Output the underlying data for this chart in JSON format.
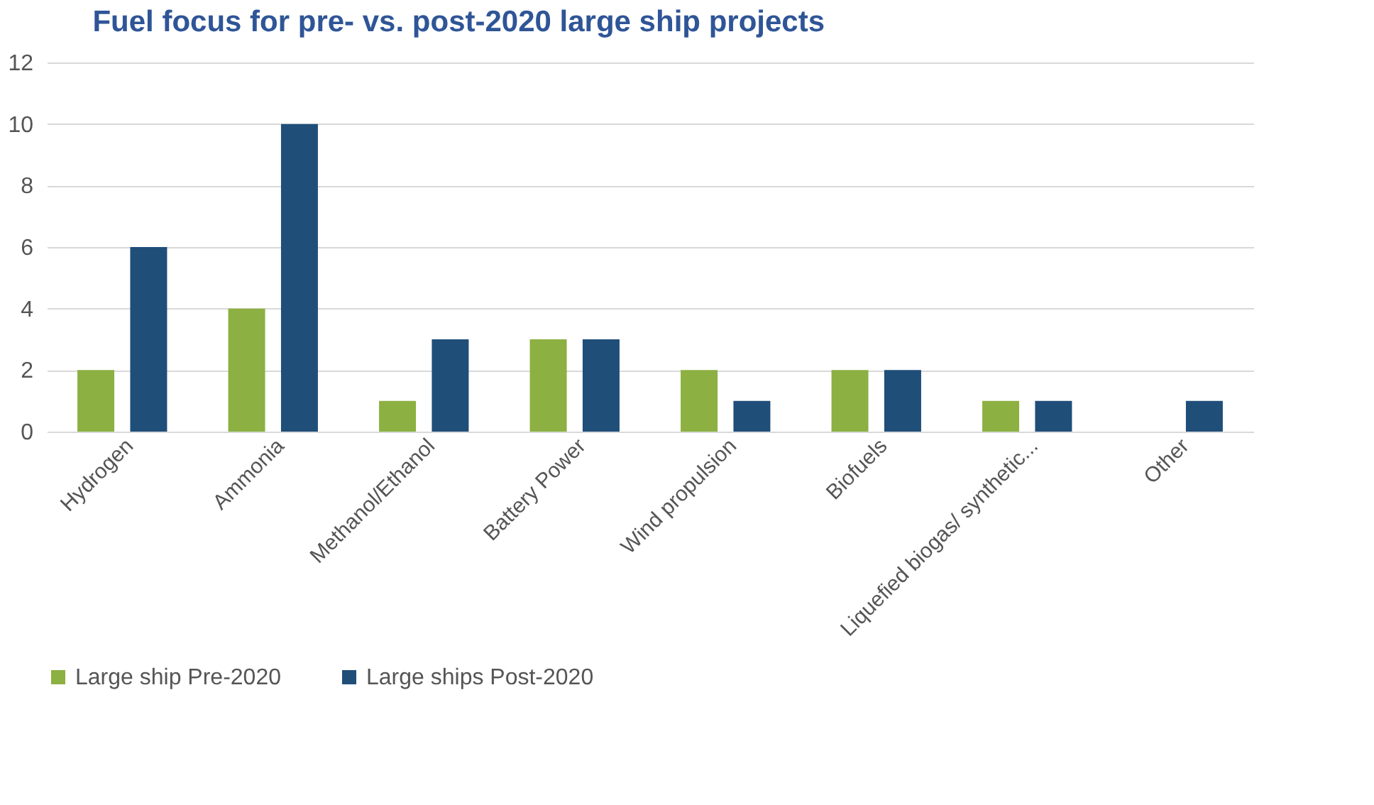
{
  "chart_data": {
    "type": "bar",
    "title": "Fuel focus for pre- vs. post-2020 large ship projects",
    "categories": [
      "Hydrogen",
      "Ammonia",
      "Methanol/Ethanol",
      "Battery Power",
      "Wind propulsion",
      "Biofuels",
      "Liquefied biogas/ synthetic...",
      "Other"
    ],
    "series": [
      {
        "name": "Large ship Pre-2020",
        "color": "#8cb042",
        "values": [
          2,
          4,
          1,
          3,
          2,
          2,
          1,
          0
        ]
      },
      {
        "name": "Large ships Post-2020",
        "color": "#1f4e79",
        "values": [
          6,
          10,
          3,
          3,
          1,
          2,
          1,
          1
        ]
      }
    ],
    "ylim": [
      0,
      12
    ],
    "yticks": [
      0,
      2,
      4,
      6,
      8,
      10,
      12
    ],
    "grid": "y",
    "legend": "bottom"
  }
}
